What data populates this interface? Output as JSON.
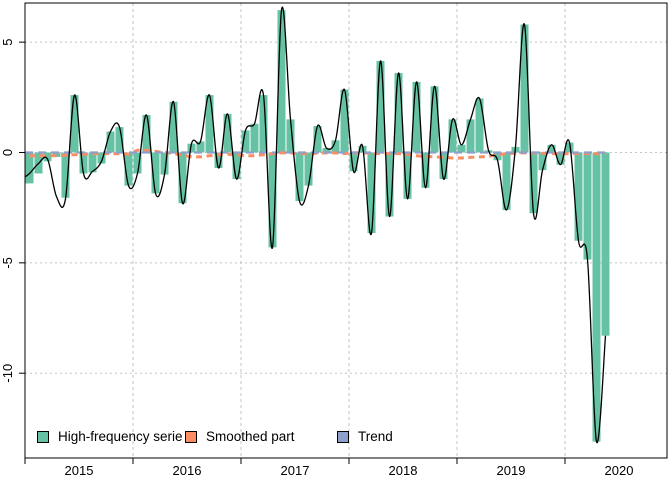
{
  "chart_data": {
    "type": "bar",
    "title": "",
    "xlabel": "",
    "ylabel": "",
    "frequency": "monthly",
    "start_month": "2015-01",
    "end_month": "2020-05",
    "x_tick_labels": [
      "2015",
      "2016",
      "2017",
      "2018",
      "2019",
      "2020"
    ],
    "y_tick_labels": [
      "5",
      "0",
      "-5",
      "-10"
    ],
    "y_ticks": [
      5,
      0,
      -5,
      -10
    ],
    "ylim": [
      -13.8,
      6.8
    ],
    "grid": "dotted gray horizontal lines at y ticks and vertical lines at year boundaries",
    "legend_position": "bottom-left inside plot",
    "series": [
      {
        "name": "High-frequency serie",
        "type": "bar",
        "color": "#66C2A5",
        "values": [
          -1.4,
          -0.95,
          -0.4,
          -0.2,
          -2.05,
          2.6,
          -0.95,
          -0.9,
          -0.5,
          0.95,
          1.15,
          -1.5,
          -0.95,
          1.7,
          -1.85,
          -1.0,
          2.3,
          -2.3,
          0.4,
          0.5,
          2.6,
          -0.7,
          1.75,
          -1.2,
          1.0,
          1.3,
          2.6,
          -4.3,
          6.45,
          1.5,
          -2.2,
          -1.5,
          1.2,
          0.2,
          0.55,
          2.85,
          -0.85,
          0.3,
          -3.65,
          4.15,
          -2.9,
          3.6,
          -2.1,
          3.2,
          -1.6,
          3.0,
          -1.2,
          1.5,
          0.35,
          1.5,
          2.45,
          0.1,
          -0.35,
          -2.6,
          0.25,
          5.8,
          -2.75,
          -0.8,
          0.35,
          -0.55,
          0.45,
          -4.0,
          -4.85,
          -13.1,
          -8.3
        ]
      },
      {
        "name": "Smoothed part",
        "type": "dashed-line",
        "color": "#FC8D62",
        "values": [
          -0.15,
          -0.15,
          -0.15,
          -0.14,
          -0.12,
          -0.1,
          -0.08,
          -0.06,
          -0.05,
          -0.05,
          -0.06,
          -0.08,
          0.1,
          0.1,
          0.05,
          0.0,
          -0.05,
          -0.12,
          -0.2,
          -0.2,
          -0.15,
          -0.1,
          -0.08,
          -0.1,
          -0.15,
          -0.15,
          -0.1,
          -0.05,
          -0.02,
          -0.02,
          -0.05,
          -0.05,
          -0.03,
          -0.02,
          -0.02,
          -0.05,
          -0.02,
          -0.02,
          -0.03,
          -0.05,
          -0.05,
          -0.05,
          -0.08,
          -0.15,
          -0.18,
          -0.2,
          -0.22,
          -0.25,
          -0.25,
          -0.22,
          -0.2,
          -0.18,
          -0.1,
          -0.05,
          -0.03,
          -0.02,
          -0.02,
          -0.03,
          -0.05,
          -0.05,
          -0.05,
          -0.05,
          -0.05,
          -0.05,
          -0.05
        ]
      },
      {
        "name": "Trend",
        "type": "dashed-line",
        "color": "#8DA0CB",
        "constant_value": 0
      }
    ],
    "overlay_line": {
      "name": "black smooth curve through monthly values",
      "color": "#000000",
      "edge_value": -1.1,
      "values": [
        -0.95,
        -0.5,
        -0.3,
        -2.0,
        -2.1,
        2.6,
        -0.95,
        -0.85,
        -0.4,
        0.95,
        1.15,
        -1.5,
        -0.95,
        1.7,
        -1.85,
        -1.0,
        2.3,
        -2.3,
        0.4,
        0.5,
        2.6,
        -0.7,
        1.75,
        -1.2,
        1.0,
        1.3,
        2.6,
        -4.3,
        6.45,
        1.5,
        -2.2,
        -1.5,
        1.2,
        0.2,
        0.55,
        2.85,
        -0.85,
        0.3,
        -3.65,
        4.15,
        -2.9,
        3.6,
        -2.1,
        3.2,
        -1.6,
        3.0,
        -1.2,
        1.5,
        0.35,
        1.5,
        2.45,
        0.1,
        -0.35,
        -2.6,
        0.25,
        5.8,
        -2.75,
        -0.8,
        0.35,
        -0.55,
        0.45,
        -4.0,
        -4.85,
        -13.1,
        -8.3
      ]
    },
    "legend": {
      "items": [
        {
          "label": "High-frequency serie",
          "color": "#66C2A5"
        },
        {
          "label": "Smoothed part",
          "color": "#FC8D62"
        },
        {
          "label": "Trend",
          "color": "#8DA0CB"
        }
      ]
    },
    "colors": {
      "grid": "#C3C3C3",
      "axis": "#000000",
      "background": "#FFFFFF"
    }
  }
}
